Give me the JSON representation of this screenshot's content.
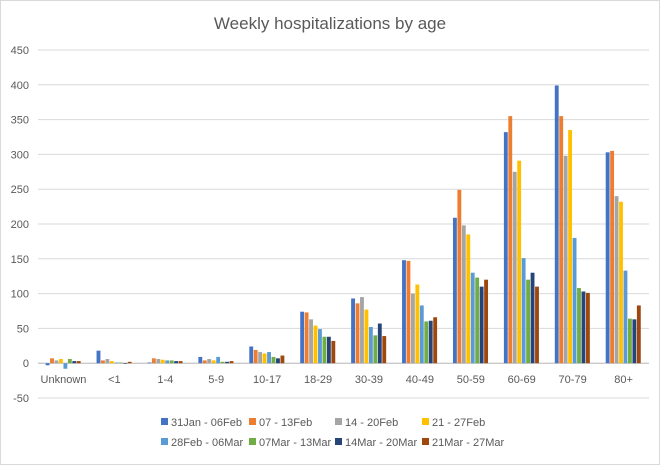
{
  "chart_data": {
    "type": "bar",
    "title": "Weekly hospitalizations by age",
    "xlabel": "",
    "ylabel": "",
    "ylim": [
      -50,
      450
    ],
    "yticks": [
      -50,
      0,
      50,
      100,
      150,
      200,
      250,
      300,
      350,
      400,
      450
    ],
    "grid": true,
    "legend_position": "bottom",
    "categories": [
      "Unknown",
      "<1",
      "1-4",
      "5-9",
      "10-17",
      "18-29",
      "30-39",
      "40-49",
      "50-59",
      "60-69",
      "70-79",
      "80+"
    ],
    "series": [
      {
        "name": "31Jan - 06Feb",
        "color": "#4472C4",
        "values": [
          -3,
          18,
          1,
          9,
          24,
          74,
          93,
          148,
          209,
          332,
          399,
          303
        ]
      },
      {
        "name": "07 - 13Feb",
        "color": "#ED7D31",
        "values": [
          7,
          4,
          7,
          4,
          19,
          73,
          86,
          147,
          249,
          355,
          355,
          305
        ]
      },
      {
        "name": "14 - 20Feb",
        "color": "#A5A5A5",
        "values": [
          4,
          6,
          6,
          6,
          16,
          63,
          95,
          100,
          198,
          275,
          298,
          240
        ]
      },
      {
        "name": "21 - 27Feb",
        "color": "#FFC000",
        "values": [
          6,
          3,
          5,
          4,
          14,
          54,
          77,
          113,
          185,
          291,
          335,
          232
        ]
      },
      {
        "name": "28Feb - 06Mar",
        "color": "#5B9BD5",
        "values": [
          -8,
          1,
          4,
          9,
          16,
          49,
          52,
          83,
          130,
          151,
          180,
          133
        ]
      },
      {
        "name": "07Mar - 13Mar",
        "color": "#70AD47",
        "values": [
          6,
          1,
          4,
          2,
          9,
          38,
          40,
          60,
          123,
          120,
          108,
          64
        ]
      },
      {
        "name": "14Mar - 20Mar",
        "color": "#264478",
        "values": [
          3,
          0,
          3,
          2,
          7,
          38,
          57,
          61,
          110,
          130,
          103,
          63
        ]
      },
      {
        "name": "21Mar - 27Mar",
        "color": "#9E480E",
        "values": [
          3,
          2,
          3,
          3,
          11,
          32,
          39,
          66,
          120,
          110,
          101,
          83
        ]
      }
    ]
  }
}
